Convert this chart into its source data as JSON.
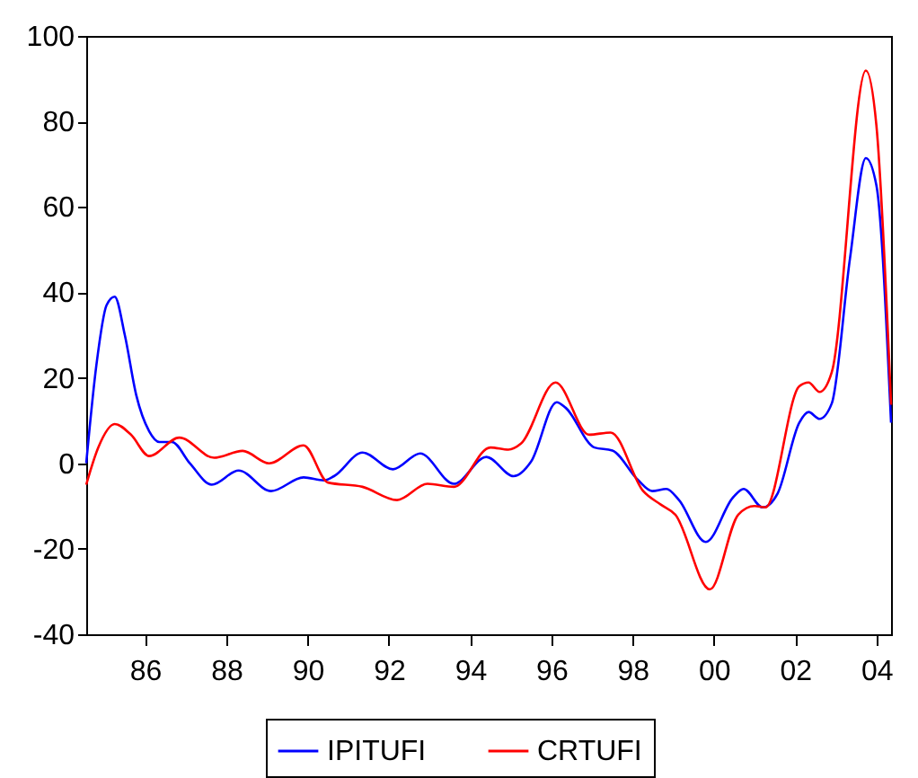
{
  "chart_data": {
    "type": "line",
    "xlim": [
      1984.55,
      2004.36
    ],
    "ylim": [
      -40,
      100
    ],
    "xticks": [
      {
        "value": 1986,
        "label": "86"
      },
      {
        "value": 1988,
        "label": "88"
      },
      {
        "value": 1990,
        "label": "90"
      },
      {
        "value": 1992,
        "label": "92"
      },
      {
        "value": 1994,
        "label": "94"
      },
      {
        "value": 1996,
        "label": "96"
      },
      {
        "value": 1998,
        "label": "98"
      },
      {
        "value": 2000,
        "label": "00"
      },
      {
        "value": 2002,
        "label": "02"
      },
      {
        "value": 2004,
        "label": "04"
      }
    ],
    "yticks": [
      -40,
      -20,
      0,
      20,
      40,
      60,
      80,
      100
    ],
    "grid": false,
    "legend": "bottom",
    "line_style": "solid",
    "marker": "none",
    "series": [
      {
        "name": "IPITUFI",
        "color": "#0000ff",
        "x": [
          1984.55,
          1984.8,
          1985.05,
          1985.25,
          1985.5,
          1985.78,
          1986.1,
          1986.35,
          1986.66,
          1987.1,
          1987.64,
          1988.3,
          1989.1,
          1989.9,
          1990.4,
          1990.65,
          1991.35,
          1992.1,
          1992.77,
          1993.6,
          1994.4,
          1995.07,
          1995.5,
          1996.13,
          1996.35,
          1997.06,
          1997.5,
          1998.12,
          1998.48,
          1998.83,
          1999.14,
          1999.8,
          2000.47,
          2000.73,
          2001.2,
          2001.57,
          2002.1,
          2002.33,
          2002.6,
          2002.9,
          2003.35,
          2003.74,
          2004.0,
          2004.36
        ],
        "values": [
          0,
          23,
          37,
          39,
          30,
          16,
          7.5,
          5,
          5,
          0,
          -5,
          -1.7,
          -6.5,
          -3.3,
          -4,
          -3,
          2.5,
          -1.4,
          2.3,
          -4.8,
          1.5,
          -3,
          0.4,
          14.3,
          13,
          3.7,
          3,
          -3.8,
          -6.5,
          -6,
          -8.6,
          -18.4,
          -8,
          -6,
          -10.3,
          -7,
          9.5,
          12,
          10.4,
          14,
          48,
          71.4,
          65,
          9.5
        ]
      },
      {
        "name": "CRTUFI",
        "color": "#ff0000",
        "x": [
          1984.55,
          1984.85,
          1985.25,
          1985.65,
          1986.1,
          1986.84,
          1987.7,
          1988.4,
          1989.05,
          1989.9,
          1990.5,
          1991.35,
          1992.2,
          1992.95,
          1993.6,
          1994.5,
          1994.94,
          1995.25,
          1996.1,
          1996.93,
          1997.46,
          1998.26,
          1998.7,
          1999.05,
          1999.9,
          2000.6,
          2001.0,
          2001.27,
          2002.1,
          2002.33,
          2002.6,
          2002.9,
          2003.74,
          2004.0,
          2004.36
        ],
        "values": [
          -5,
          3.8,
          9.2,
          6.7,
          1.7,
          6,
          1.3,
          2.9,
          0,
          4.2,
          -4.5,
          -5.5,
          -8.6,
          -4.8,
          -5.5,
          3.7,
          3.2,
          4.6,
          18.9,
          6.7,
          7.2,
          -6.5,
          -9.7,
          -12,
          -29.5,
          -12,
          -10,
          -10.3,
          18,
          18.9,
          16.7,
          21.3,
          91.9,
          79,
          13.7
        ]
      }
    ]
  }
}
